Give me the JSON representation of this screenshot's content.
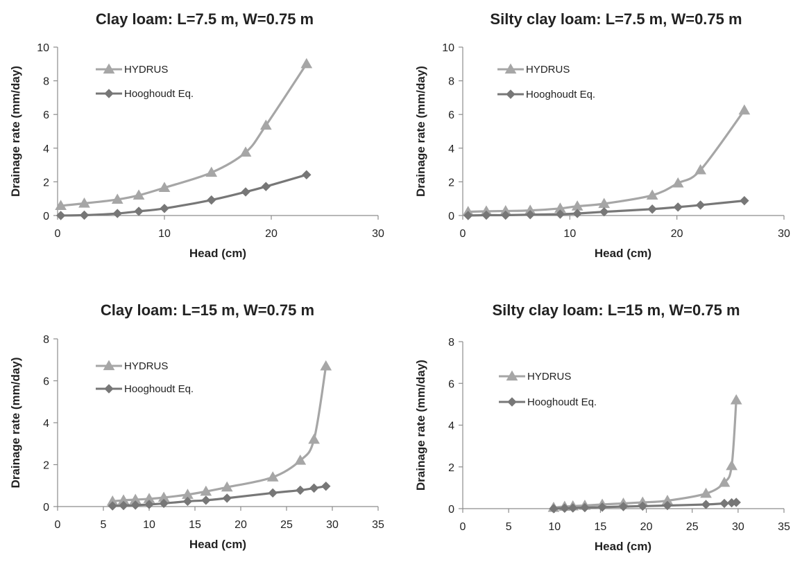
{
  "chart_data": [
    {
      "type": "line",
      "title": "Clay loam: L=7.5 m, W=0.75 m",
      "xlabel": "Head (cm)",
      "ylabel": "Drainage rate (mm/day)",
      "xlim": [
        0,
        30
      ],
      "ylim": [
        0,
        10
      ],
      "xticks": [
        0,
        10,
        20,
        30
      ],
      "yticks": [
        0,
        2,
        4,
        6,
        8,
        10
      ],
      "legend_position": "top-left",
      "series": [
        {
          "name": "HYDRUS",
          "marker": "triangle",
          "color": "#a6a6a6",
          "x": [
            0.3,
            2.5,
            5.6,
            7.6,
            10.0,
            14.4,
            17.6,
            19.5,
            23.3
          ],
          "y": [
            0.58,
            0.72,
            0.95,
            1.2,
            1.65,
            2.55,
            3.75,
            5.35,
            9.0
          ]
        },
        {
          "name": "Hooghoudt Eq.",
          "marker": "diamond",
          "color": "#777777",
          "x": [
            0.3,
            2.5,
            5.6,
            7.6,
            10.0,
            14.4,
            17.6,
            19.5,
            23.3
          ],
          "y": [
            0.0,
            0.02,
            0.12,
            0.25,
            0.42,
            0.92,
            1.4,
            1.72,
            2.42
          ]
        }
      ]
    },
    {
      "type": "line",
      "title": "Silty clay loam: L=7.5 m, W=0.75 m",
      "xlabel": "Head (cm)",
      "ylabel": "Drainage rate (mm/day)",
      "xlim": [
        0,
        30
      ],
      "ylim": [
        0,
        10
      ],
      "xticks": [
        0,
        10,
        20,
        30
      ],
      "yticks": [
        0,
        2,
        4,
        6,
        8,
        10
      ],
      "legend_position": "top-left",
      "series": [
        {
          "name": "HYDRUS",
          "marker": "triangle",
          "color": "#a6a6a6",
          "x": [
            0.5,
            2.2,
            4.0,
            6.3,
            9.1,
            10.7,
            13.2,
            17.7,
            20.1,
            22.2,
            26.3
          ],
          "y": [
            0.22,
            0.25,
            0.27,
            0.3,
            0.42,
            0.55,
            0.7,
            1.2,
            1.92,
            2.7,
            6.25
          ]
        },
        {
          "name": "Hooghoudt Eq.",
          "marker": "diamond",
          "color": "#777777",
          "x": [
            0.5,
            2.2,
            4.0,
            6.3,
            9.1,
            10.7,
            13.2,
            17.7,
            20.1,
            22.2,
            26.3
          ],
          "y": [
            0.0,
            0.02,
            0.02,
            0.05,
            0.08,
            0.12,
            0.22,
            0.38,
            0.5,
            0.62,
            0.88
          ]
        }
      ]
    },
    {
      "type": "line",
      "title": "Clay loam: L=15 m, W=0.75 m",
      "xlabel": "Head (cm)",
      "ylabel": "Drainage rate (mm/day)",
      "xlim": [
        0,
        35
      ],
      "ylim": [
        0,
        8
      ],
      "xticks": [
        0,
        5,
        10,
        15,
        20,
        25,
        30,
        35
      ],
      "yticks": [
        0,
        2,
        4,
        6,
        8
      ],
      "legend_position": "top-left",
      "series": [
        {
          "name": "HYDRUS",
          "marker": "triangle",
          "color": "#a6a6a6",
          "x": [
            6.0,
            7.2,
            8.5,
            10.0,
            11.6,
            14.2,
            16.2,
            18.5,
            23.5,
            26.5,
            28.0,
            29.3
          ],
          "y": [
            0.25,
            0.3,
            0.33,
            0.37,
            0.43,
            0.57,
            0.72,
            0.92,
            1.4,
            2.2,
            3.2,
            6.7
          ]
        },
        {
          "name": "Hooghoudt Eq.",
          "marker": "diamond",
          "color": "#777777",
          "x": [
            6.0,
            7.2,
            8.5,
            10.0,
            11.6,
            14.2,
            16.2,
            18.5,
            23.5,
            26.5,
            28.0,
            29.3
          ],
          "y": [
            0.03,
            0.05,
            0.07,
            0.1,
            0.15,
            0.25,
            0.3,
            0.4,
            0.65,
            0.78,
            0.88,
            0.97
          ]
        }
      ]
    },
    {
      "type": "line",
      "title": "Silty clay loam: L=15 m, W=0.75 m",
      "xlabel": "Head (cm)",
      "ylabel": "Drainage rate (mm/day)",
      "xlim": [
        0,
        35
      ],
      "ylim": [
        0,
        8
      ],
      "xticks": [
        0,
        5,
        10,
        15,
        20,
        25,
        30,
        35
      ],
      "yticks": [
        0,
        2,
        4,
        6,
        8
      ],
      "legend_position": "top-left",
      "series": [
        {
          "name": "HYDRUS",
          "marker": "triangle",
          "color": "#a6a6a6",
          "x": [
            9.9,
            11.1,
            12.0,
            13.3,
            15.2,
            17.5,
            19.6,
            22.3,
            26.5,
            28.5,
            29.3,
            29.8
          ],
          "y": [
            0.05,
            0.1,
            0.12,
            0.15,
            0.2,
            0.25,
            0.3,
            0.38,
            0.72,
            1.25,
            2.05,
            5.2
          ]
        },
        {
          "name": "Hooghoudt Eq.",
          "marker": "diamond",
          "color": "#777777",
          "x": [
            9.9,
            11.1,
            12.0,
            13.3,
            15.2,
            17.5,
            19.6,
            22.3,
            26.5,
            28.5,
            29.3,
            29.8
          ],
          "y": [
            0.0,
            0.02,
            0.03,
            0.05,
            0.07,
            0.1,
            0.12,
            0.15,
            0.2,
            0.25,
            0.28,
            0.3
          ]
        }
      ]
    }
  ]
}
